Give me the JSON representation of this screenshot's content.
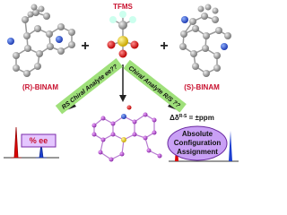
{
  "reactants": {
    "left": "(R)-BINAM",
    "center": "TFMS",
    "right": "(S)-BINAM",
    "plus_left": "+",
    "plus_right": "+"
  },
  "branches": {
    "left": "RS Chiral Analyte ee??",
    "right": "Chiral Analyte R/S ??"
  },
  "outputs": {
    "ee_label": "% ee",
    "delta_symbol": "Δδ",
    "delta_sup": "R-S",
    "delta_rest": " = ±ppm",
    "assignment_line1": "Absolute",
    "assignment_line2": "Configuration",
    "assignment_line3": "Assignment"
  }
}
